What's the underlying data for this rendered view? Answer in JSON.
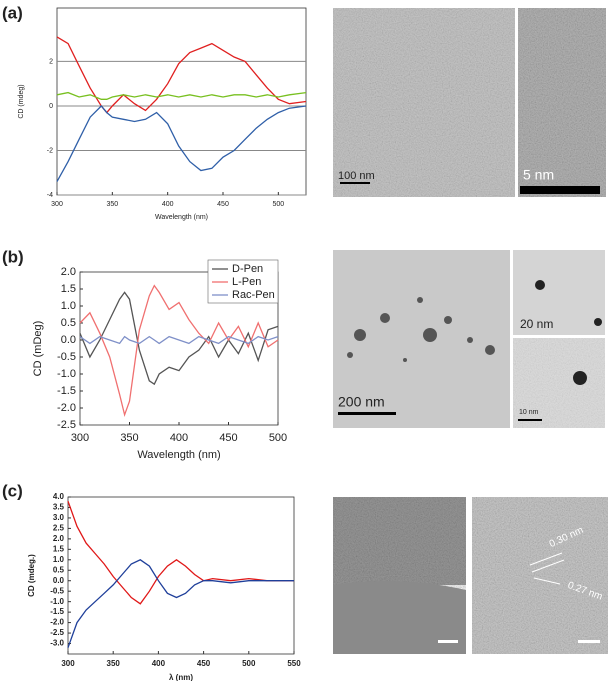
{
  "panels": [
    "(a)",
    "(b)",
    "(c)"
  ],
  "image_labels": [
    "100 nm",
    "5 nm",
    "20 nm",
    "200 nm",
    "10 nm",
    "0.30 nm",
    "0.27 nm"
  ],
  "chart_data": [
    {
      "type": "line",
      "ylabel": "CD (mdeg)",
      "xlabel": "Wavelength (nm)",
      "xlim": [
        300,
        525
      ],
      "xticks": [
        300,
        350,
        400,
        450,
        500
      ],
      "ylim": [
        -4,
        4.4
      ],
      "yticks": [
        2,
        0,
        -2,
        -4
      ],
      "grid": true,
      "x": [
        300,
        310,
        320,
        330,
        340,
        345,
        350,
        360,
        370,
        380,
        390,
        400,
        410,
        420,
        430,
        440,
        450,
        460,
        470,
        480,
        490,
        500,
        510,
        525
      ],
      "series": [
        {
          "color": "#e02020",
          "values": [
            3.1,
            2.8,
            1.8,
            0.8,
            0.0,
            -0.3,
            0.0,
            0.5,
            0.1,
            -0.2,
            0.3,
            1.0,
            1.9,
            2.4,
            2.6,
            2.8,
            2.5,
            2.2,
            2.0,
            1.4,
            0.8,
            0.3,
            0.1,
            0.2
          ]
        },
        {
          "color": "#78c020",
          "values": [
            0.5,
            0.6,
            0.4,
            0.5,
            0.3,
            0.3,
            0.4,
            0.5,
            0.4,
            0.5,
            0.4,
            0.5,
            0.4,
            0.5,
            0.4,
            0.5,
            0.4,
            0.5,
            0.5,
            0.4,
            0.5,
            0.4,
            0.5,
            0.6
          ]
        },
        {
          "color": "#2f5fa8",
          "values": [
            -3.4,
            -2.5,
            -1.5,
            -0.5,
            0.0,
            -0.3,
            -0.5,
            -0.6,
            -0.7,
            -0.6,
            -0.3,
            -0.8,
            -1.8,
            -2.5,
            -2.9,
            -2.8,
            -2.3,
            -2.0,
            -1.5,
            -1.0,
            -0.6,
            -0.3,
            -0.1,
            0.0
          ]
        }
      ]
    },
    {
      "type": "line",
      "ylabel": "CD (mDeg)",
      "xlabel": "Wavelength (nm)",
      "xlim": [
        300,
        500
      ],
      "xticks": [
        300,
        350,
        400,
        450,
        500
      ],
      "ylim": [
        -2.5,
        2.0
      ],
      "yticks": [
        {
          "value": 2,
          "label": "2.0"
        },
        1.5,
        {
          "value": 1,
          "label": "1.0"
        },
        0.5,
        {
          "value": 0,
          "label": "0.0"
        },
        -0.5,
        {
          "value": -1,
          "label": "-1.0"
        },
        -1.5,
        {
          "value": -2,
          "label": "-2.0"
        },
        -2.5
      ],
      "grid": false,
      "legend": "upper right",
      "x": [
        300,
        310,
        320,
        330,
        340,
        345,
        350,
        360,
        370,
        375,
        380,
        390,
        400,
        410,
        420,
        430,
        440,
        450,
        460,
        470,
        480,
        490,
        500
      ],
      "series": [
        {
          "name": "D-Pen",
          "color": "#555555",
          "values": [
            0.2,
            -0.5,
            0.0,
            0.6,
            1.2,
            1.4,
            1.2,
            -0.3,
            -1.2,
            -1.3,
            -1.0,
            -0.8,
            -0.9,
            -0.5,
            -0.3,
            0.1,
            -0.5,
            0.0,
            -0.4,
            0.2,
            -0.6,
            0.3,
            0.4
          ]
        },
        {
          "name": "L-Pen",
          "color": "#f07070",
          "values": [
            0.5,
            0.8,
            0.2,
            -0.5,
            -1.6,
            -2.2,
            -1.8,
            0.3,
            1.3,
            1.6,
            1.4,
            0.9,
            1.1,
            0.6,
            0.2,
            -0.1,
            0.5,
            0.0,
            0.4,
            -0.2,
            0.5,
            -0.2,
            0.0
          ]
        },
        {
          "name": "Rac-Pen",
          "color": "#7f90c8",
          "values": [
            0.1,
            -0.1,
            0.1,
            0.0,
            -0.1,
            0.1,
            0.0,
            -0.1,
            0.1,
            0.0,
            -0.1,
            0.1,
            0.0,
            -0.1,
            0.1,
            0.0,
            -0.1,
            0.1,
            0.0,
            -0.1,
            0.1,
            0.0,
            0.1
          ]
        }
      ]
    },
    {
      "type": "line",
      "ylabel": "CD (mdeg.)",
      "xlabel": "λ (nm)",
      "xlim": [
        300,
        550
      ],
      "xticks": [
        300,
        350,
        400,
        450,
        500,
        550
      ],
      "ylim": [
        -3.5,
        4.0
      ],
      "yticks": [
        {
          "value": 4,
          "label": "4.0"
        },
        3.5,
        {
          "value": 3,
          "label": "3.0"
        },
        2.5,
        {
          "value": 2,
          "label": "2.0"
        },
        1.5,
        {
          "value": 1,
          "label": "1.0"
        },
        0.5,
        {
          "value": 0,
          "label": "0.0"
        },
        -0.5,
        {
          "value": -1,
          "label": "-1.0"
        },
        -1.5,
        {
          "value": -2,
          "label": "-2.0"
        },
        -2.5,
        {
          "value": -3,
          "label": "-3.0"
        }
      ],
      "grid": false,
      "x": [
        300,
        310,
        320,
        330,
        340,
        350,
        360,
        370,
        380,
        390,
        400,
        410,
        420,
        430,
        440,
        450,
        460,
        480,
        500,
        520,
        550
      ],
      "series": [
        {
          "color": "#e01818",
          "values": [
            3.8,
            2.6,
            1.8,
            1.3,
            0.8,
            0.2,
            -0.3,
            -0.8,
            -1.1,
            -0.5,
            0.2,
            0.7,
            1.0,
            0.7,
            0.3,
            0.0,
            0.1,
            0.0,
            0.1,
            0.0,
            0.0
          ]
        },
        {
          "color": "#1f3f9a",
          "values": [
            -3.2,
            -2.0,
            -1.4,
            -1.0,
            -0.6,
            -0.2,
            0.3,
            0.8,
            1.0,
            0.7,
            0.0,
            -0.6,
            -0.8,
            -0.6,
            -0.2,
            0.0,
            0.0,
            -0.1,
            0.0,
            0.0,
            0.0
          ]
        }
      ]
    }
  ]
}
